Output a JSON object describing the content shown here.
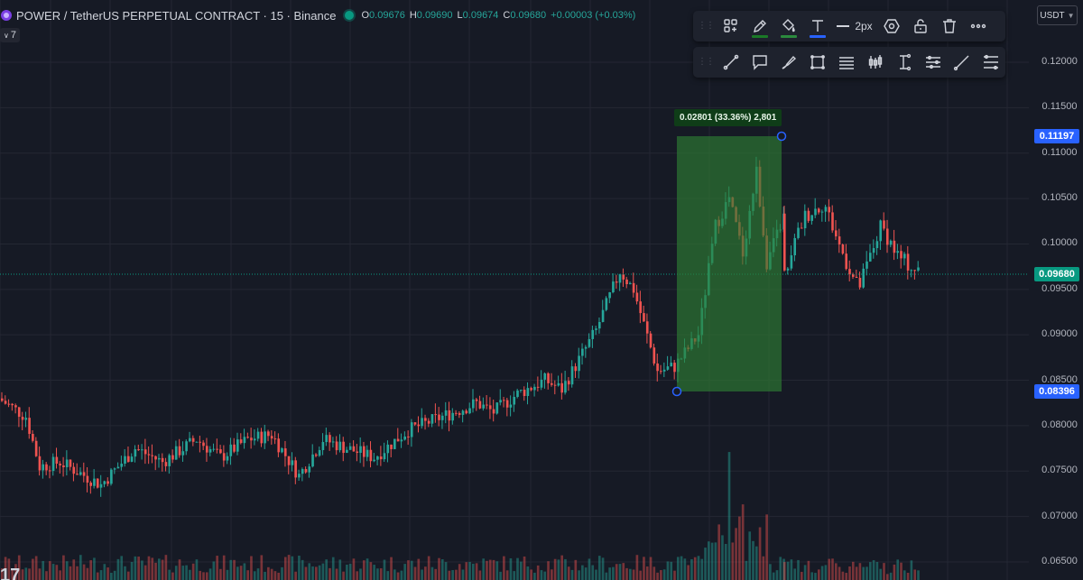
{
  "header": {
    "symbol_title": "POWER / TetherUS PERPETUAL CONTRACT · 15 · Binance",
    "ohlc": {
      "o_label": "O",
      "o_value": "0.09676",
      "h_label": "H",
      "h_value": "0.09690",
      "l_label": "L",
      "l_value": "0.09674",
      "c_label": "C",
      "c_value": "0.09680",
      "change": "+0.00003 (+0.03%)"
    },
    "indicator_count": "7"
  },
  "currency": {
    "label": "USDT",
    "icon": "chevron-down-icon"
  },
  "drawing_toolbar": {
    "row1": [
      {
        "name": "templates",
        "icon": "grid-plus-icon"
      },
      {
        "name": "line-color",
        "icon": "pencil-icon",
        "underline": "#1b7a27"
      },
      {
        "name": "fill-color",
        "icon": "paint-bucket-icon",
        "underline": "#2b8a3e"
      },
      {
        "name": "text-color",
        "icon": "text-t-icon",
        "underline": "#2962ff"
      }
    ],
    "width_label": "2px",
    "row1_tail": [
      {
        "name": "settings",
        "icon": "hexagon-gear-icon"
      },
      {
        "name": "lock",
        "icon": "unlock-icon"
      },
      {
        "name": "delete",
        "icon": "trash-icon"
      },
      {
        "name": "more",
        "icon": "more-dots-icon"
      }
    ],
    "row2": [
      {
        "name": "trend-line",
        "icon": "trend-line-icon"
      },
      {
        "name": "callout",
        "icon": "callout-icon"
      },
      {
        "name": "brush",
        "icon": "brush-icon"
      },
      {
        "name": "rectangle",
        "icon": "rectangle-icon"
      },
      {
        "name": "parallel-channel",
        "icon": "channel-icon"
      },
      {
        "name": "candles",
        "icon": "candles-icon"
      },
      {
        "name": "price-range",
        "icon": "price-range-icon"
      },
      {
        "name": "date-range",
        "icon": "date-range-icon"
      },
      {
        "name": "ray",
        "icon": "ray-icon"
      },
      {
        "name": "fib",
        "icon": "fib-icon"
      }
    ]
  },
  "measurement": {
    "label": "0.02801 (33.36%) 2,801",
    "top_price": "0.11197",
    "bottom_price": "0.08396",
    "fill": "#2e7d32"
  },
  "current_price_tag": "0.09680",
  "watermark": "17",
  "colors": {
    "up": "#26a69a",
    "down": "#ef5350",
    "background": "#161a25",
    "grid": "#242733",
    "measure_handle": "#2962ff"
  },
  "chart_data": {
    "type": "candlestick",
    "y_axis": {
      "ticks": [
        "0.12000",
        "0.11500",
        "0.11000",
        "0.10500",
        "0.10000",
        "0.09500",
        "0.09000",
        "0.08500",
        "0.08000",
        "0.07500",
        "0.07000",
        "0.06500"
      ],
      "ylim": [
        0.0632,
        0.1244
      ]
    },
    "candle_count": 230,
    "anchors": [
      {
        "i": 0,
        "p": 0.083
      },
      {
        "i": 8,
        "p": 0.081
      },
      {
        "i": 12,
        "p": 0.0755
      },
      {
        "i": 18,
        "p": 0.076
      },
      {
        "i": 30,
        "p": 0.0735
      },
      {
        "i": 40,
        "p": 0.0775
      },
      {
        "i": 48,
        "p": 0.076
      },
      {
        "i": 58,
        "p": 0.0785
      },
      {
        "i": 65,
        "p": 0.0765
      },
      {
        "i": 73,
        "p": 0.0785
      },
      {
        "i": 80,
        "p": 0.079
      },
      {
        "i": 88,
        "p": 0.0745
      },
      {
        "i": 95,
        "p": 0.0785
      },
      {
        "i": 102,
        "p": 0.0775
      },
      {
        "i": 110,
        "p": 0.0765
      },
      {
        "i": 120,
        "p": 0.0795
      },
      {
        "i": 130,
        "p": 0.081
      },
      {
        "i": 140,
        "p": 0.0825
      },
      {
        "i": 145,
        "p": 0.0815
      },
      {
        "i": 152,
        "p": 0.0835
      },
      {
        "i": 160,
        "p": 0.085
      },
      {
        "i": 165,
        "p": 0.084
      },
      {
        "i": 175,
        "p": 0.0905
      },
      {
        "i": 182,
        "p": 0.097
      },
      {
        "i": 186,
        "p": 0.095
      },
      {
        "i": 193,
        "p": 0.086
      },
      {
        "i": 198,
        "p": 0.0865
      },
      {
        "i": 205,
        "p": 0.09
      },
      {
        "i": 210,
        "p": 0.102
      },
      {
        "i": 214,
        "p": 0.105
      },
      {
        "i": 218,
        "p": 0.099
      },
      {
        "i": 222,
        "p": 0.108
      },
      {
        "i": 225,
        "p": 0.098
      },
      {
        "i": 230,
        "p": 0.103
      }
    ],
    "tail_anchors": [
      {
        "x": 875,
        "p": 0.099
      },
      {
        "x": 890,
        "p": 0.103
      },
      {
        "x": 912,
        "p": 0.1045
      },
      {
        "x": 930,
        "p": 0.0995
      },
      {
        "x": 950,
        "p": 0.095
      },
      {
        "x": 975,
        "p": 0.102
      },
      {
        "x": 995,
        "p": 0.0985
      },
      {
        "x": 1018,
        "p": 0.0968
      }
    ]
  }
}
